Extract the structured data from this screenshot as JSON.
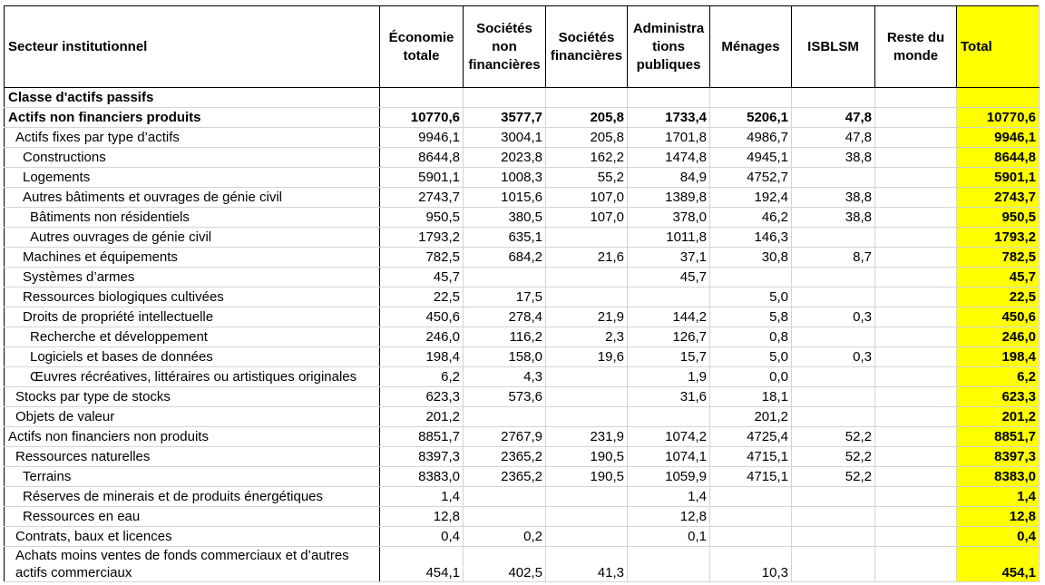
{
  "header": {
    "sector": "Secteur institutionnel",
    "col1": "Économie totale",
    "col2": "Sociétés non financières",
    "col3": "Sociétés financières",
    "col4": "Administra tions publiques",
    "col5": "Ménages",
    "col6": "ISBLSM",
    "col7": "Reste du monde",
    "col8": "Total"
  },
  "rows": [
    {
      "label": "Classe d'actifs passifs",
      "v": [
        "",
        "",
        "",
        "",
        "",
        "",
        "",
        ""
      ]
    },
    {
      "label": "Actifs non financiers produits",
      "v": [
        "10770,6",
        "3577,7",
        "205,8",
        "1733,4",
        "5206,1",
        "47,8",
        "",
        "10770,6"
      ]
    },
    {
      "label": "Actifs fixes par type d’actifs",
      "v": [
        "9946,1",
        "3004,1",
        "205,8",
        "1701,8",
        "4986,7",
        "47,8",
        "",
        "9946,1"
      ]
    },
    {
      "label": "Constructions",
      "v": [
        "8644,8",
        "2023,8",
        "162,2",
        "1474,8",
        "4945,1",
        "38,8",
        "",
        "8644,8"
      ]
    },
    {
      "label": "Logements",
      "v": [
        "5901,1",
        "1008,3",
        "55,2",
        "84,9",
        "4752,7",
        "",
        "",
        "5901,1"
      ]
    },
    {
      "label": "Autres bâtiments et ouvrages de génie civil",
      "v": [
        "2743,7",
        "1015,6",
        "107,0",
        "1389,8",
        "192,4",
        "38,8",
        "",
        "2743,7"
      ]
    },
    {
      "label": "Bâtiments non résidentiels",
      "v": [
        "950,5",
        "380,5",
        "107,0",
        "378,0",
        "46,2",
        "38,8",
        "",
        "950,5"
      ]
    },
    {
      "label": "Autres ouvrages de génie civil",
      "v": [
        "1793,2",
        "635,1",
        "",
        "1011,8",
        "146,3",
        "",
        "",
        "1793,2"
      ]
    },
    {
      "label": "Machines et équipements",
      "v": [
        "782,5",
        "684,2",
        "21,6",
        "37,1",
        "30,8",
        "8,7",
        "",
        "782,5"
      ]
    },
    {
      "label": "Systèmes d’armes",
      "v": [
        "45,7",
        "",
        "",
        "45,7",
        "",
        "",
        "",
        "45,7"
      ]
    },
    {
      "label": "Ressources biologiques cultivées",
      "v": [
        "22,5",
        "17,5",
        "",
        "",
        "5,0",
        "",
        "",
        "22,5"
      ]
    },
    {
      "label": "Droits de propriété intellectuelle",
      "v": [
        "450,6",
        "278,4",
        "21,9",
        "144,2",
        "5,8",
        "0,3",
        "",
        "450,6"
      ]
    },
    {
      "label": "Recherche et développement",
      "v": [
        "246,0",
        "116,2",
        "2,3",
        "126,7",
        "0,8",
        "",
        "",
        "246,0"
      ]
    },
    {
      "label": "Logiciels et bases de données",
      "v": [
        "198,4",
        "158,0",
        "19,6",
        "15,7",
        "5,0",
        "0,3",
        "",
        "198,4"
      ]
    },
    {
      "label": "Œuvres récréatives, littéraires ou artistiques originales",
      "v": [
        "6,2",
        "4,3",
        "",
        "1,9",
        "0,0",
        "",
        "",
        "6,2"
      ]
    },
    {
      "label": "Stocks par type de stocks",
      "v": [
        "623,3",
        "573,6",
        "",
        "31,6",
        "18,1",
        "",
        "",
        "623,3"
      ]
    },
    {
      "label": "Objets de valeur",
      "v": [
        "201,2",
        "",
        "",
        "",
        "201,2",
        "",
        "",
        "201,2"
      ]
    },
    {
      "label": "Actifs non financiers non produits",
      "v": [
        "8851,7",
        "2767,9",
        "231,9",
        "1074,2",
        "4725,4",
        "52,2",
        "",
        "8851,7"
      ]
    },
    {
      "label": "Ressources naturelles",
      "v": [
        "8397,3",
        "2365,2",
        "190,5",
        "1074,1",
        "4715,1",
        "52,2",
        "",
        "8397,3"
      ]
    },
    {
      "label": "Terrains",
      "v": [
        "8383,0",
        "2365,2",
        "190,5",
        "1059,9",
        "4715,1",
        "52,2",
        "",
        "8383,0"
      ]
    },
    {
      "label": "Réserves de minerais et de produits énergétiques",
      "v": [
        "1,4",
        "",
        "",
        "1,4",
        "",
        "",
        "",
        "1,4"
      ]
    },
    {
      "label": "Ressources en eau",
      "v": [
        "12,8",
        "",
        "",
        "12,8",
        "",
        "",
        "",
        "12,8"
      ]
    },
    {
      "label": "Contrats, baux et licences",
      "v": [
        "0,4",
        "0,2",
        "",
        "0,1",
        "",
        "",
        "",
        "0,4"
      ]
    },
    {
      "label": "Achats moins ventes de fonds commerciaux et d’autres actifs commerciaux",
      "v": [
        "454,1",
        "402,5",
        "41,3",
        "",
        "10,3",
        "",
        "",
        "454,1"
      ]
    }
  ]
}
